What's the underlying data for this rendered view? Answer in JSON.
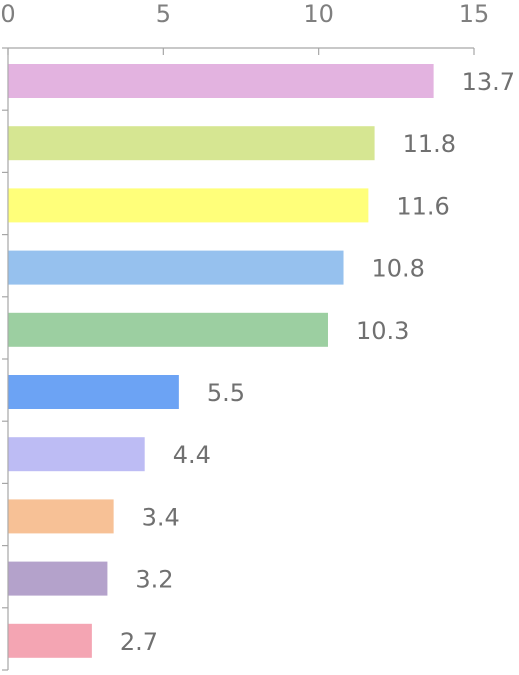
{
  "chart_data": {
    "type": "bar",
    "orientation": "horizontal",
    "x_axis_position": "top",
    "xlim": [
      0,
      15
    ],
    "x_ticks": [
      0,
      5,
      10,
      15
    ],
    "x_tick_labels": [
      "0",
      "5",
      "10",
      "15"
    ],
    "grid": false,
    "legend": "none",
    "title": "",
    "xlabel": "",
    "ylabel": "",
    "values": [
      13.7,
      11.8,
      11.6,
      10.8,
      10.3,
      5.5,
      4.4,
      3.4,
      3.2,
      2.7
    ],
    "value_labels": [
      "13.7",
      "11.8",
      "11.6",
      "10.8",
      "10.3",
      "5.5",
      "4.4",
      "3.4",
      "3.2",
      "2.7"
    ],
    "colors": [
      "#e3b3e0",
      "#d6e692",
      "#ffff7a",
      "#96c1ee",
      "#9ccfa1",
      "#6ca3f4",
      "#bdbcf4",
      "#f7c196",
      "#b4a2cb",
      "#f4a5b3"
    ]
  }
}
